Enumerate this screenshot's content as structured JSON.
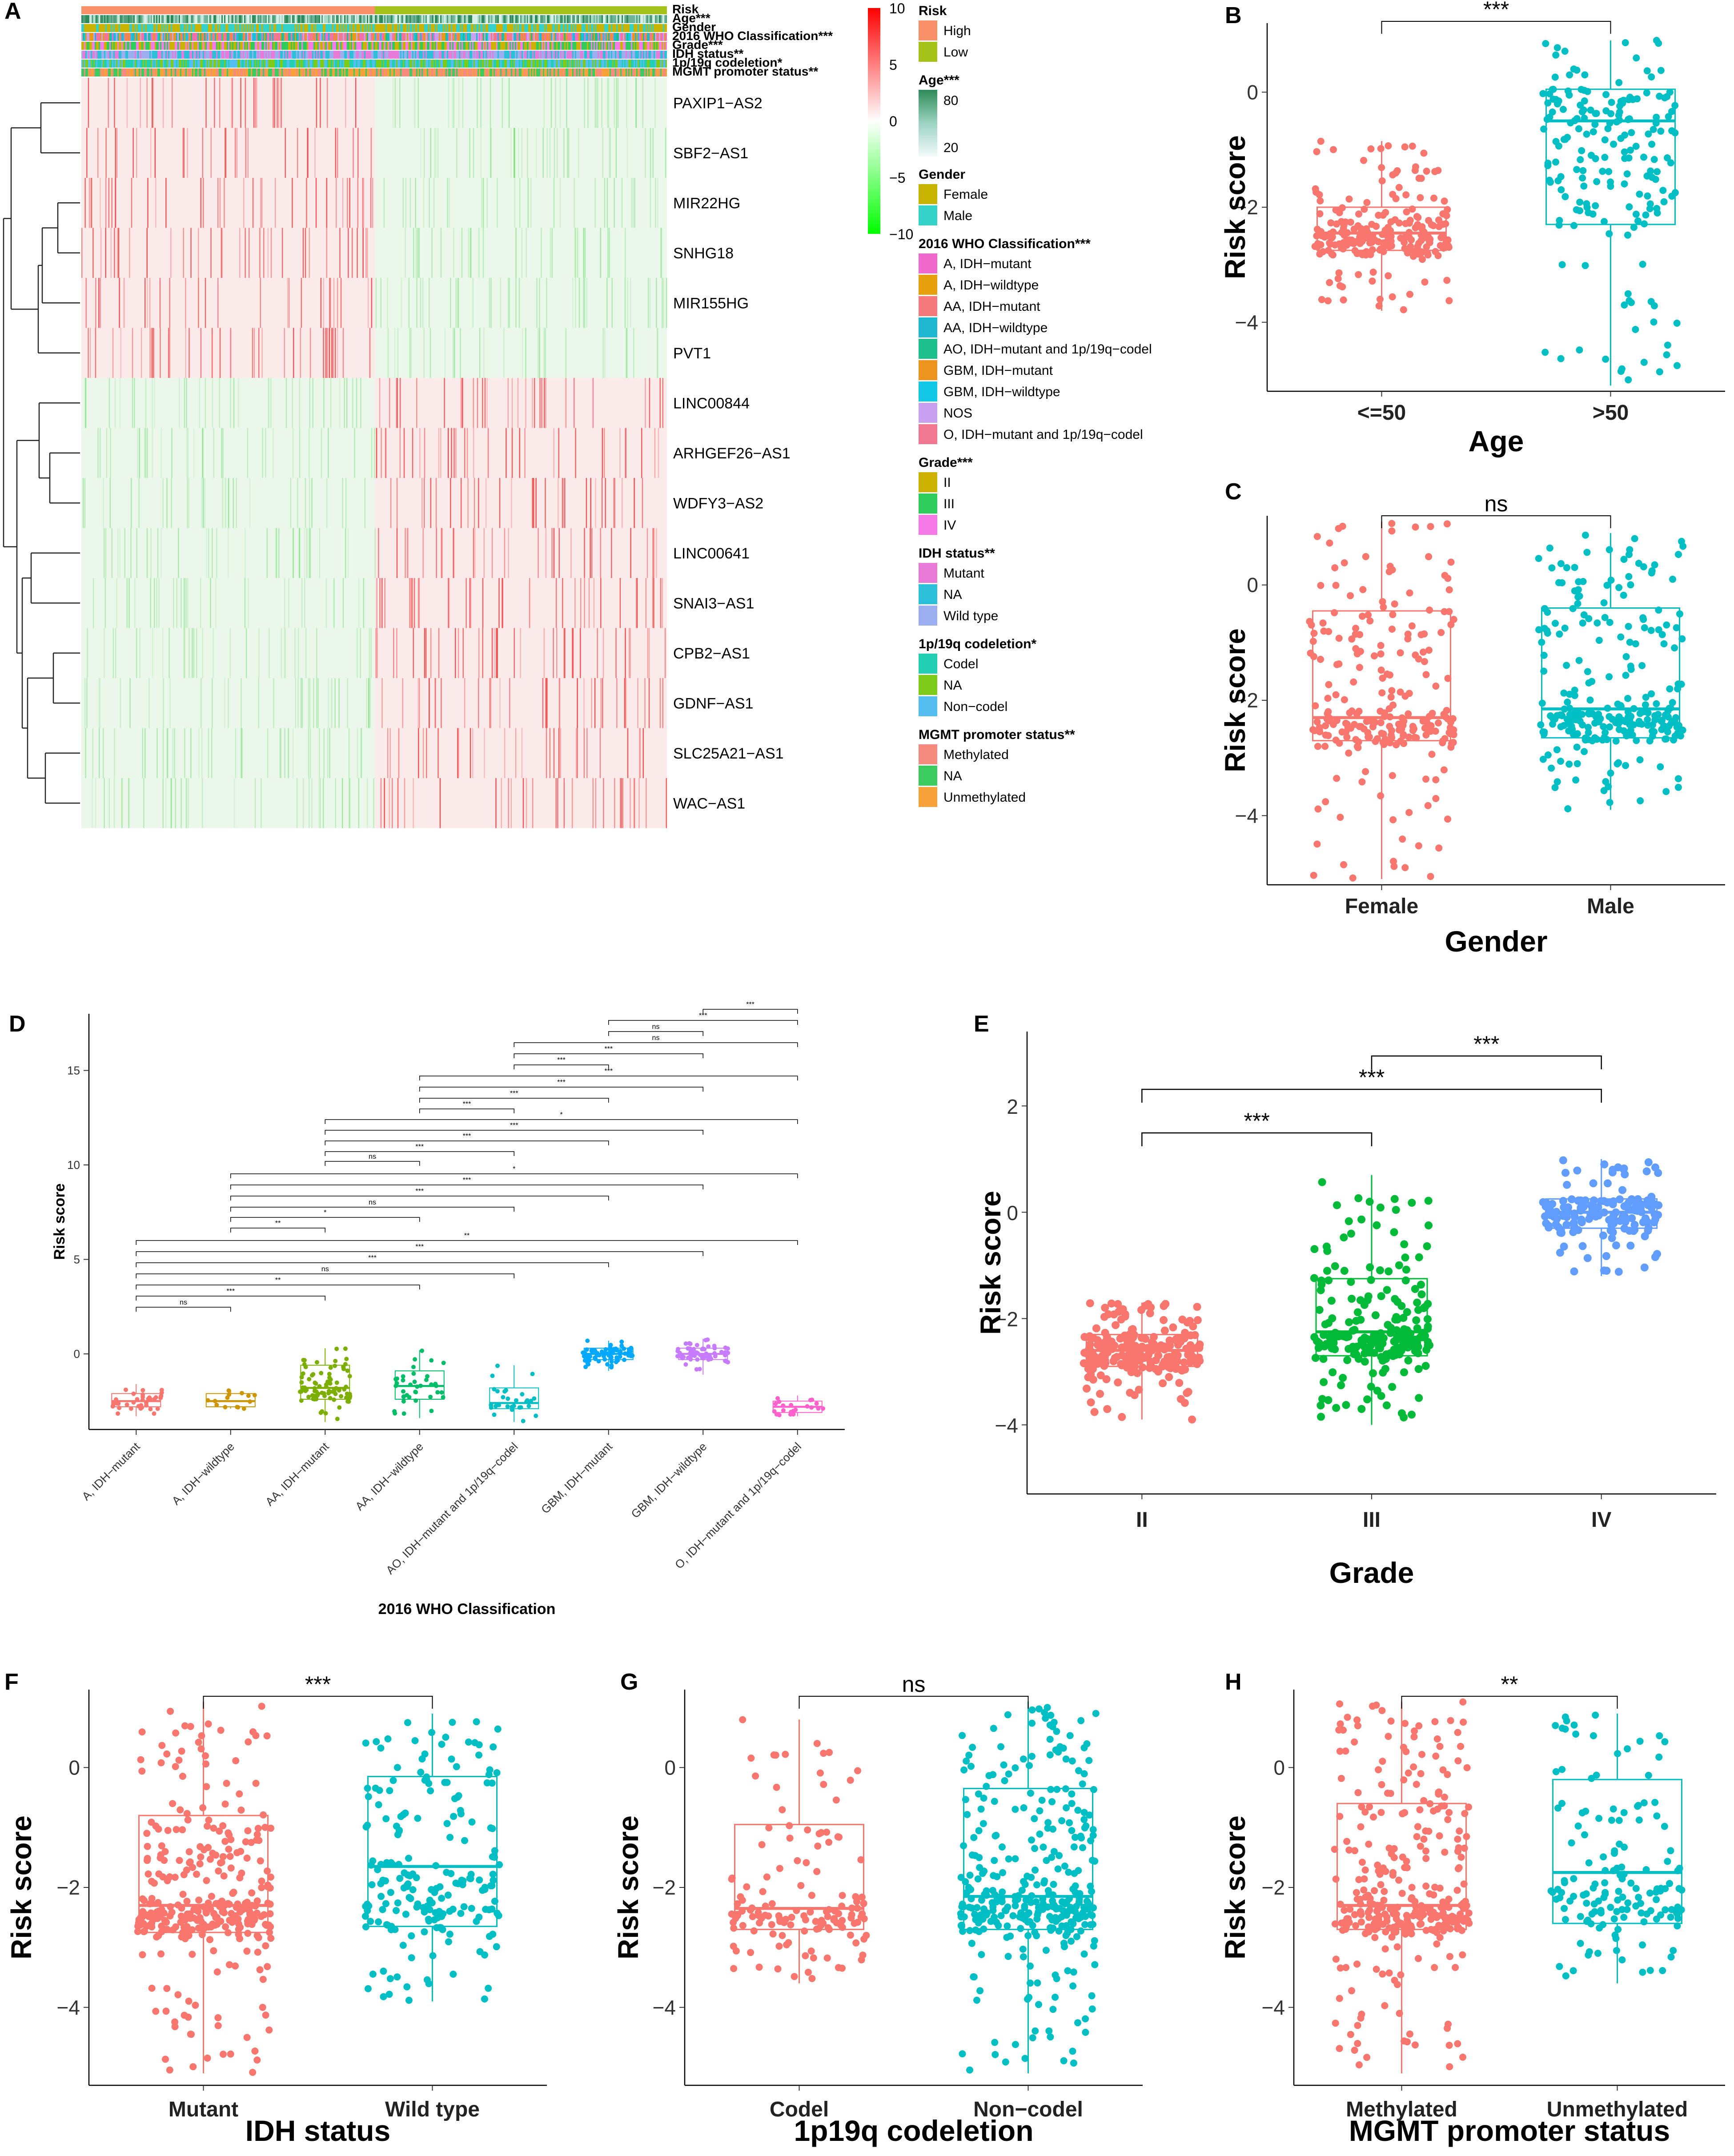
{
  "colors": {
    "high": "#F8906A",
    "low": "#A5C21B",
    "red": "#F8766D",
    "teal": "#00BFC4",
    "grade2": "#F8766D",
    "grade3": "#00BA38",
    "grade4": "#619CFF",
    "hm_high": "#FF0000",
    "hm_mid": "#FFFFFF",
    "hm_low": "#00FF00"
  },
  "panelA": {
    "label": "A",
    "annotation_rows": [
      "Risk",
      "Age***",
      "Gender",
      "2016 WHO Classification***",
      "Grade***",
      "IDH status**",
      "1p/19q codeletion*",
      "MGMT promoter status**"
    ],
    "genes": [
      "PAXIP1−AS2",
      "SBF2−AS1",
      "MIR22HG",
      "SNHG18",
      "MIR155HG",
      "PVT1",
      "LINC00844",
      "ARHGEF26−AS1",
      "WDFY3−AS2",
      "LINC00641",
      "SNAI3−AS1",
      "CPB2−AS1",
      "GDNF−AS1",
      "SLC25A21−AS1",
      "WAC−AS1"
    ],
    "colorbar_ticks": [
      "10",
      "5",
      "0",
      "−5",
      "−10"
    ],
    "legend": [
      {
        "title": "Risk",
        "type": "swatch",
        "items": [
          {
            "label": "High",
            "color": "#F8906A"
          },
          {
            "label": "Low",
            "color": "#A5C21B"
          }
        ]
      },
      {
        "title": "Age***",
        "type": "gradient",
        "ticks": [
          "80",
          "20"
        ]
      },
      {
        "title": "Gender",
        "type": "swatch",
        "items": [
          {
            "label": "Female",
            "color": "#C8B400"
          },
          {
            "label": "Male",
            "color": "#33D1C8"
          }
        ]
      },
      {
        "title": "2016 WHO Classification***",
        "type": "swatch",
        "items": [
          {
            "label": "A, IDH−mutant",
            "color": "#F06ACD"
          },
          {
            "label": "A, IDH−wildtype",
            "color": "#E6A00E"
          },
          {
            "label": "AA, IDH−mutant",
            "color": "#F5787A"
          },
          {
            "label": "AA, IDH−wildtype",
            "color": "#1FB8D0"
          },
          {
            "label": "AO, IDH−mutant and 1p/19q−codel",
            "color": "#1DC08A"
          },
          {
            "label": "GBM, IDH−mutant",
            "color": "#ED9320"
          },
          {
            "label": "GBM, IDH−wildtype",
            "color": "#12C8E6"
          },
          {
            "label": "NOS",
            "color": "#C8A0F0"
          },
          {
            "label": "O, IDH−mutant and 1p/19q−codel",
            "color": "#F07890"
          }
        ]
      },
      {
        "title": "Grade***",
        "type": "swatch",
        "items": [
          {
            "label": "II",
            "color": "#CDB100"
          },
          {
            "label": "III",
            "color": "#2ECC5A"
          },
          {
            "label": "IV",
            "color": "#F579E6"
          }
        ]
      },
      {
        "title": "IDH status**",
        "type": "swatch",
        "items": [
          {
            "label": "Mutant",
            "color": "#E97BD8"
          },
          {
            "label": "NA",
            "color": "#2CC0DA"
          },
          {
            "label": "Wild type",
            "color": "#9AAEF0"
          }
        ]
      },
      {
        "title": "1p/19q codeletion*",
        "type": "swatch",
        "items": [
          {
            "label": "Codel",
            "color": "#22CFB3"
          },
          {
            "label": "NA",
            "color": "#7ECB1A"
          },
          {
            "label": "Non−codel",
            "color": "#55BEF0"
          }
        ]
      },
      {
        "title": "MGMT promoter status**",
        "type": "swatch",
        "items": [
          {
            "label": "Methylated",
            "color": "#F58A7E"
          },
          {
            "label": "NA",
            "color": "#3CCB5E"
          },
          {
            "label": "Unmethylated",
            "color": "#F7A13A"
          }
        ]
      }
    ]
  },
  "chart_data": [
    {
      "panel": "B",
      "type": "box",
      "title": "",
      "xlabel": "Age",
      "ylabel": "Risk score",
      "categories": [
        "<=50",
        ">50"
      ],
      "ylim": [
        -5.2,
        1.2
      ],
      "yticks": [
        "0",
        "−2",
        "−4"
      ],
      "significance": "***",
      "boxes": [
        {
          "q1": -2.75,
          "median": -2.45,
          "q3": -2.0,
          "lower": -3.8,
          "upper": -0.85
        },
        {
          "q1": -2.3,
          "median": -0.5,
          "q3": 0.05,
          "lower": -5.1,
          "upper": 0.9
        }
      ]
    },
    {
      "panel": "C",
      "type": "box",
      "title": "",
      "xlabel": "Gender",
      "ylabel": "Risk score",
      "categories": [
        "Female",
        "Male"
      ],
      "ylim": [
        -5.2,
        1.2
      ],
      "yticks": [
        "0",
        "−2",
        "−4"
      ],
      "significance": "ns",
      "boxes": [
        {
          "q1": -2.7,
          "median": -2.3,
          "q3": -0.45,
          "lower": -5.1,
          "upper": 1.1
        },
        {
          "q1": -2.65,
          "median": -2.15,
          "q3": -0.4,
          "lower": -3.9,
          "upper": 0.9
        }
      ]
    },
    {
      "panel": "D",
      "type": "box",
      "title": "",
      "xlabel": "2016 WHO Classification",
      "ylabel": "Risk score",
      "categories": [
        "A, IDH−mutant",
        "A, IDH−wildtype",
        "AA, IDH−mutant",
        "AA, IDH−wildtype",
        "AO, IDH−mutant and 1p/19q−codel",
        "GBM, IDH−mutant",
        "GBM, IDH−wildtype",
        "O, IDH−mutant and 1p/19q−codel"
      ],
      "ylim": [
        -4,
        18
      ],
      "yticks": [
        "0",
        "5",
        "10",
        "15"
      ],
      "boxes": [
        {
          "q1": -2.8,
          "median": -2.5,
          "q3": -2.1,
          "lower": -3.3,
          "upper": -1.6
        },
        {
          "q1": -2.8,
          "median": -2.5,
          "q3": -2.1,
          "lower": -2.9,
          "upper": -1.9
        },
        {
          "q1": -2.4,
          "median": -1.8,
          "q3": -0.6,
          "lower": -3.6,
          "upper": 0.3
        },
        {
          "q1": -2.4,
          "median": -1.7,
          "q3": -0.9,
          "lower": -3.4,
          "upper": 0.2
        },
        {
          "q1": -2.9,
          "median": -2.6,
          "q3": -1.8,
          "lower": -3.6,
          "upper": -0.6
        },
        {
          "q1": -0.3,
          "median": 0.0,
          "q3": 0.3,
          "lower": -0.9,
          "upper": 0.7
        },
        {
          "q1": -0.3,
          "median": 0.0,
          "q3": 0.3,
          "lower": -1.1,
          "upper": 0.8
        },
        {
          "q1": -3.1,
          "median": -2.8,
          "q3": -2.5,
          "lower": -3.3,
          "upper": -2.2
        }
      ],
      "comparisons": [
        {
          "from": 1,
          "to": 2,
          "label": "ns"
        },
        {
          "from": 1,
          "to": 3,
          "label": "***"
        },
        {
          "from": 1,
          "to": 4,
          "label": "**"
        },
        {
          "from": 1,
          "to": 5,
          "label": "ns"
        },
        {
          "from": 1,
          "to": 6,
          "label": "***"
        },
        {
          "from": 1,
          "to": 7,
          "label": "***"
        },
        {
          "from": 1,
          "to": 8,
          "label": "**"
        },
        {
          "from": 2,
          "to": 3,
          "label": "**"
        },
        {
          "from": 2,
          "to": 4,
          "label": "*"
        },
        {
          "from": 2,
          "to": 5,
          "label": "ns"
        },
        {
          "from": 2,
          "to": 6,
          "label": "***"
        },
        {
          "from": 2,
          "to": 7,
          "label": "***"
        },
        {
          "from": 2,
          "to": 8,
          "label": "*"
        },
        {
          "from": 3,
          "to": 4,
          "label": "ns"
        },
        {
          "from": 3,
          "to": 5,
          "label": "***"
        },
        {
          "from": 3,
          "to": 6,
          "label": "***"
        },
        {
          "from": 3,
          "to": 7,
          "label": "***"
        },
        {
          "from": 3,
          "to": 8,
          "label": "*"
        },
        {
          "from": 4,
          "to": 5,
          "label": "***"
        },
        {
          "from": 4,
          "to": 6,
          "label": "***"
        },
        {
          "from": 4,
          "to": 7,
          "label": "***"
        },
        {
          "from": 4,
          "to": 8,
          "label": "***"
        },
        {
          "from": 5,
          "to": 6,
          "label": "***"
        },
        {
          "from": 5,
          "to": 7,
          "label": "***"
        },
        {
          "from": 5,
          "to": 8,
          "label": "ns"
        },
        {
          "from": 6,
          "to": 7,
          "label": "ns"
        },
        {
          "from": 6,
          "to": 8,
          "label": "***"
        },
        {
          "from": 7,
          "to": 8,
          "label": "***"
        }
      ]
    },
    {
      "panel": "E",
      "type": "box",
      "title": "",
      "xlabel": "Grade",
      "ylabel": "Risk score",
      "categories": [
        "II",
        "III",
        "IV"
      ],
      "ylim": [
        -5.3,
        3.4
      ],
      "yticks": [
        "2",
        "0",
        "−2",
        "−4"
      ],
      "boxes": [
        {
          "q1": -2.9,
          "median": -2.6,
          "q3": -2.3,
          "lower": -3.9,
          "upper": -1.7
        },
        {
          "q1": -2.7,
          "median": -2.25,
          "q3": -1.25,
          "lower": -4.0,
          "upper": 0.7
        },
        {
          "q1": -0.3,
          "median": 0.0,
          "q3": 0.25,
          "lower": -1.2,
          "upper": 1.0
        }
      ],
      "comparisons": [
        {
          "from": 1,
          "to": 2,
          "label": "***"
        },
        {
          "from": 1,
          "to": 3,
          "label": "***"
        },
        {
          "from": 2,
          "to": 3,
          "label": "***"
        }
      ]
    },
    {
      "panel": "F",
      "type": "box",
      "title": "",
      "xlabel": "IDH status",
      "ylabel": "Risk score",
      "categories": [
        "Mutant",
        "Wild type"
      ],
      "ylim": [
        -5.3,
        1.3
      ],
      "yticks": [
        "0",
        "−2",
        "−4"
      ],
      "significance": "***",
      "boxes": [
        {
          "q1": -2.75,
          "median": -2.3,
          "q3": -0.8,
          "lower": -5.1,
          "upper": 1.1
        },
        {
          "q1": -2.65,
          "median": -1.65,
          "q3": -0.15,
          "lower": -3.9,
          "upper": 0.9
        }
      ]
    },
    {
      "panel": "G",
      "type": "box",
      "title": "",
      "xlabel": "1p19q codeletion",
      "ylabel": "Risk score",
      "categories": [
        "Codel",
        "Non−codel"
      ],
      "ylim": [
        -5.3,
        1.3
      ],
      "yticks": [
        "0",
        "−2",
        "−4"
      ],
      "significance": "ns",
      "boxes": [
        {
          "q1": -2.7,
          "median": -2.35,
          "q3": -0.95,
          "lower": -3.6,
          "upper": 0.8
        },
        {
          "q1": -2.7,
          "median": -2.15,
          "q3": -0.35,
          "lower": -5.1,
          "upper": 1.1
        }
      ]
    },
    {
      "panel": "H",
      "type": "box",
      "title": "",
      "xlabel": "MGMT promoter status",
      "ylabel": "Risk score",
      "categories": [
        "Methylated",
        "Unmethylated"
      ],
      "ylim": [
        -5.3,
        1.3
      ],
      "yticks": [
        "0",
        "−2",
        "−4"
      ],
      "significance": "**",
      "boxes": [
        {
          "q1": -2.7,
          "median": -2.3,
          "q3": -0.6,
          "lower": -5.1,
          "upper": 1.1
        },
        {
          "q1": -2.6,
          "median": -1.75,
          "q3": -0.2,
          "lower": -3.6,
          "upper": 0.9
        }
      ]
    }
  ]
}
